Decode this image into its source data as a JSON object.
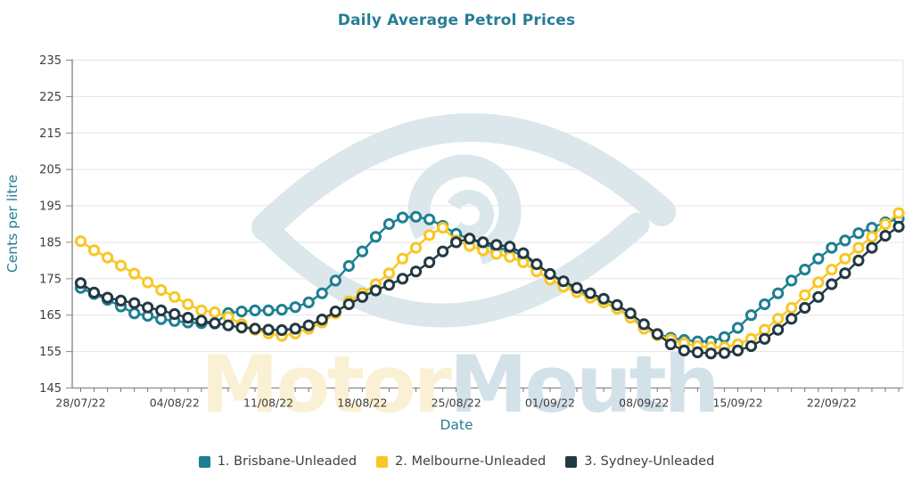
{
  "title": "Daily Average Petrol Prices",
  "watermark": {
    "part1": "Motor",
    "part2": "Mouth",
    "part1_color": "#faf0d3",
    "part2_color": "#d3e2e9",
    "eye_color": "#dbe7ea"
  },
  "axis": {
    "tick_color": "#777777",
    "label_color": "#3d3d3d",
    "grid_color": "#e4e4e4",
    "spine_color": "#8a8a8a"
  },
  "chart_data": {
    "type": "line",
    "title": "Daily Average Petrol Prices",
    "xlabel": "Date",
    "ylabel": "Cents per litre",
    "ylim": [
      145,
      235
    ],
    "y_ticks": [
      145,
      155,
      165,
      175,
      185,
      195,
      205,
      215,
      225,
      235
    ],
    "grid": true,
    "legend_position": "bottom",
    "num_days": 62,
    "x_tick_every_days": 7,
    "x_tick_labels": [
      "28/07/22",
      "04/08/22",
      "11/08/22",
      "18/08/22",
      "25/08/22",
      "01/09/22",
      "08/09/22",
      "15/09/22",
      "22/09/22"
    ],
    "series": [
      {
        "name": "1. Brisbane-Unleaded",
        "color": "#1e7f93",
        "values": [
          172.5,
          170.8,
          169.2,
          167.4,
          165.5,
          164.8,
          163.9,
          163.4,
          163.0,
          162.8,
          162.7,
          165.6,
          166.0,
          166.3,
          166.3,
          166.5,
          167.2,
          168.5,
          171.0,
          174.5,
          178.5,
          182.5,
          186.5,
          190.0,
          191.8,
          192.0,
          191.3,
          189.5,
          187.3,
          186.0,
          184.5,
          183.5,
          182.8,
          181.3,
          178.8,
          176.3,
          174.0,
          172.0,
          170.3,
          168.6,
          166.8,
          164.5,
          161.5,
          159.8,
          158.8,
          158.2,
          157.8,
          157.8,
          159.0,
          161.5,
          165.0,
          168.0,
          171.0,
          174.5,
          177.5,
          180.5,
          183.5,
          185.5,
          187.5,
          189.0,
          190.5,
          191.5
        ]
      },
      {
        "name": "2. Melbourne-Unleaded",
        "color": "#f9c623",
        "values": [
          185.3,
          182.8,
          180.8,
          178.6,
          176.4,
          174.0,
          171.9,
          170.0,
          168.0,
          166.3,
          165.8,
          164.5,
          162.5,
          161.0,
          160.0,
          159.3,
          160.0,
          161.3,
          163.0,
          165.5,
          168.8,
          171.0,
          173.5,
          176.5,
          180.5,
          183.5,
          187.0,
          189.0,
          185.5,
          184.0,
          182.8,
          181.8,
          181.0,
          179.5,
          177.0,
          174.8,
          172.8,
          171.3,
          169.8,
          168.5,
          166.8,
          164.3,
          161.3,
          159.5,
          158.3,
          157.3,
          156.5,
          156.2,
          156.2,
          157.0,
          158.5,
          161.0,
          164.0,
          167.0,
          170.5,
          174.0,
          177.5,
          180.5,
          183.5,
          186.5,
          190.0,
          193.0
        ]
      },
      {
        "name": "3. Sydney-Unleaded",
        "color": "#233943",
        "values": [
          173.8,
          171.2,
          169.8,
          169.0,
          168.3,
          167.1,
          166.3,
          165.3,
          164.3,
          163.5,
          162.8,
          162.2,
          161.6,
          161.3,
          161.0,
          160.9,
          161.3,
          162.2,
          163.8,
          166.0,
          168.0,
          170.0,
          171.8,
          173.3,
          175.0,
          177.0,
          179.5,
          182.5,
          185.0,
          186.0,
          185.0,
          184.3,
          183.8,
          182.0,
          179.0,
          176.3,
          174.3,
          172.5,
          171.0,
          169.5,
          167.8,
          165.5,
          162.5,
          159.8,
          157.0,
          155.3,
          154.8,
          154.5,
          154.6,
          155.3,
          156.5,
          158.5,
          161.0,
          164.0,
          167.0,
          170.0,
          173.5,
          176.5,
          180.0,
          183.5,
          186.8,
          189.3
        ]
      }
    ]
  }
}
